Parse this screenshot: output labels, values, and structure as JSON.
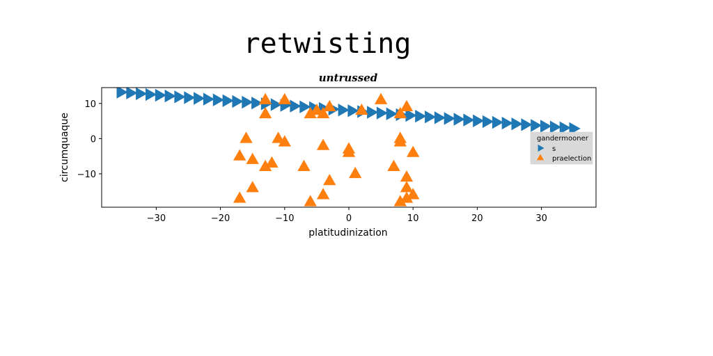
{
  "figure": {
    "suptitle": "retwisting",
    "title": "untrussed"
  },
  "chart_data": {
    "type": "scatter",
    "title": "untrussed",
    "xlabel": "platitudinization",
    "ylabel": "circumquaque",
    "xlim": [
      -38.5,
      38.5
    ],
    "ylim": [
      -19.5,
      14.5
    ],
    "xticks": [
      -30,
      -20,
      -10,
      0,
      10,
      20,
      30
    ],
    "yticks": [
      -10,
      0,
      10
    ],
    "grid": false,
    "legend": {
      "title": "gandermooner",
      "placement": "right"
    },
    "series": [
      {
        "name": "s",
        "marker": "triangle-right",
        "color": "#1f77b4",
        "x": [
          -35.5,
          -34.0,
          -32.5,
          -31.0,
          -29.5,
          -28.0,
          -26.5,
          -25.0,
          -23.5,
          -22.0,
          -20.5,
          -19.0,
          -17.5,
          -16.0,
          -14.5,
          -13.0,
          -11.5,
          -10.0,
          -8.5,
          -7.0,
          -5.5,
          -4.0,
          -2.5,
          -1.0,
          0.5,
          2.0,
          3.5,
          5.0,
          6.5,
          8.0,
          9.5,
          11.0,
          12.5,
          14.0,
          15.5,
          17.0,
          18.5,
          20.0,
          21.5,
          23.0,
          24.5,
          26.0,
          27.5,
          29.0,
          30.5,
          32.0,
          33.5,
          35.0
        ],
        "y": [
          13.2,
          12.98,
          12.76,
          12.54,
          12.32,
          12.1,
          11.88,
          11.66,
          11.44,
          11.22,
          11.0,
          10.78,
          10.56,
          10.34,
          10.12,
          9.9,
          9.68,
          9.46,
          9.24,
          9.02,
          8.8,
          8.58,
          8.36,
          8.14,
          7.92,
          7.7,
          7.48,
          7.26,
          7.04,
          6.82,
          6.6,
          6.38,
          6.16,
          5.94,
          5.72,
          5.5,
          5.28,
          5.06,
          4.84,
          4.62,
          4.4,
          4.18,
          3.96,
          3.74,
          3.52,
          3.3,
          3.08,
          2.86
        ]
      },
      {
        "name": "praelection",
        "marker": "triangle-up",
        "color": "#ff7f0e",
        "x": [
          -13,
          -10,
          -13,
          -6,
          -5,
          -4,
          -3,
          2,
          5,
          8,
          9,
          8,
          -16,
          -11,
          -10,
          -17,
          -15,
          -13,
          -12,
          -7,
          -4,
          0,
          0,
          1,
          7,
          8,
          10,
          9,
          -15,
          -17,
          -6,
          -4,
          -3,
          9,
          10,
          8,
          9
        ],
        "y": [
          11,
          11,
          7,
          7,
          8,
          7,
          9,
          8,
          11,
          7,
          9,
          0,
          0,
          0,
          -1,
          -5,
          -6,
          -8,
          -7,
          -8,
          -2,
          -3,
          -4,
          -10,
          -8,
          -1,
          -4,
          -11,
          -14,
          -17,
          -18,
          -16,
          -12,
          -14,
          -16,
          -18,
          -17
        ]
      }
    ]
  }
}
